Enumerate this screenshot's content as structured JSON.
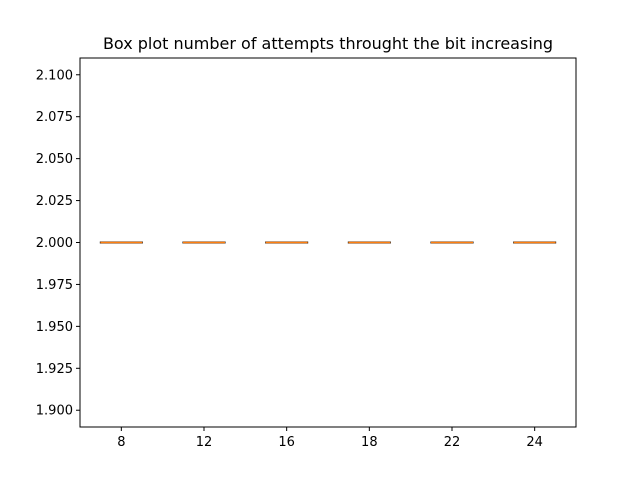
{
  "chart_data": {
    "type": "box",
    "title": "Box plot number of attempts throught the bit increasing",
    "xlabel": "",
    "ylabel": "",
    "categories": [
      "8",
      "12",
      "16",
      "18",
      "22",
      "24"
    ],
    "boxes": [
      {
        "category": "8",
        "min": 2.0,
        "q1": 2.0,
        "median": 2.0,
        "q3": 2.0,
        "max": 2.0
      },
      {
        "category": "12",
        "min": 2.0,
        "q1": 2.0,
        "median": 2.0,
        "q3": 2.0,
        "max": 2.0
      },
      {
        "category": "16",
        "min": 2.0,
        "q1": 2.0,
        "median": 2.0,
        "q3": 2.0,
        "max": 2.0
      },
      {
        "category": "18",
        "min": 2.0,
        "q1": 2.0,
        "median": 2.0,
        "q3": 2.0,
        "max": 2.0
      },
      {
        "category": "22",
        "min": 2.0,
        "q1": 2.0,
        "median": 2.0,
        "q3": 2.0,
        "max": 2.0
      },
      {
        "category": "24",
        "min": 2.0,
        "q1": 2.0,
        "median": 2.0,
        "q3": 2.0,
        "max": 2.0
      }
    ],
    "ylim": [
      1.89,
      2.11
    ],
    "yticks": [
      "1.900",
      "1.925",
      "1.950",
      "1.975",
      "2.000",
      "2.025",
      "2.050",
      "2.075",
      "2.100"
    ],
    "grid": false,
    "colors": {
      "box": "#000000",
      "median": "#ff7f0e"
    }
  }
}
